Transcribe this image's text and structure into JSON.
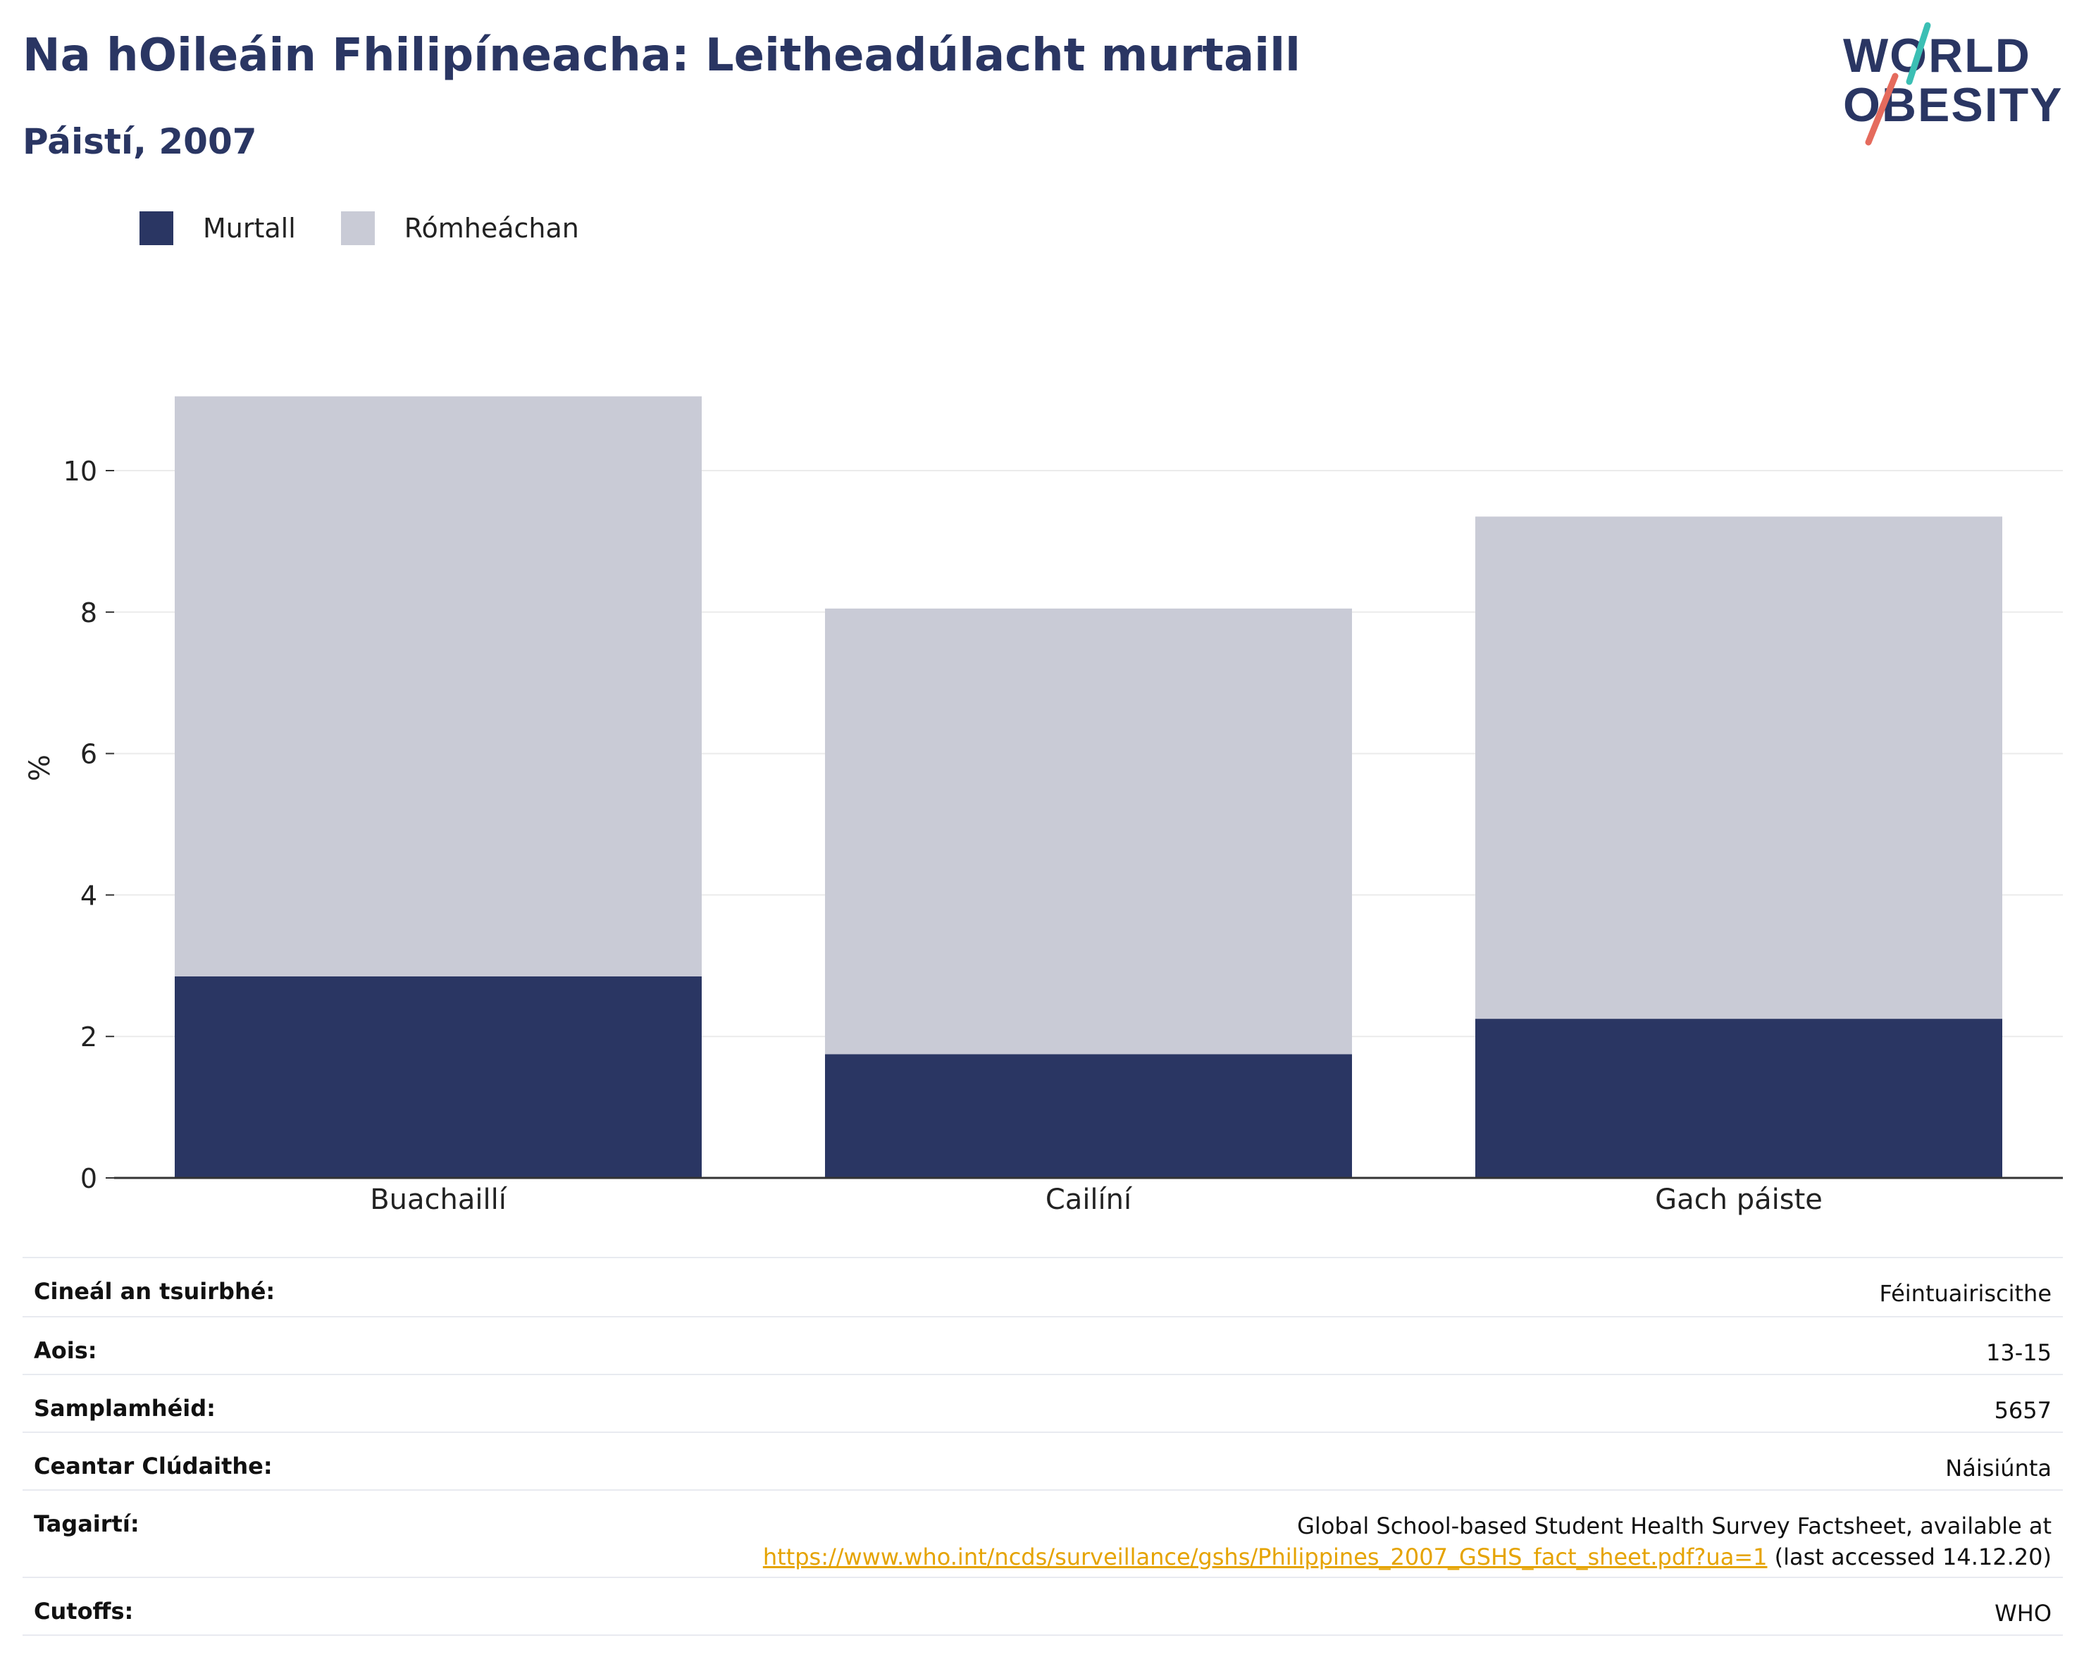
{
  "header": {
    "title": "Na hOileáin Fhilipíneacha: Leitheadúlacht murtaill",
    "subtitle": "Páistí, 2007"
  },
  "logo": {
    "line1": "WORLD",
    "line2": "OBESITY"
  },
  "colors": {
    "obese": "#2a3663",
    "overweight": "#c9cbd6",
    "title": "#2a3663",
    "link": "#e5a300",
    "logo_teal": "#3bbfb4",
    "logo_coral": "#e56b5d"
  },
  "legend": [
    {
      "label": "Murtall",
      "color": "#2a3663"
    },
    {
      "label": "Rómheáchan",
      "color": "#c9cbd6"
    }
  ],
  "chart_data": {
    "type": "bar",
    "stacked": true,
    "categories": [
      "Buachaillí",
      "Cailíní",
      "Gach páiste"
    ],
    "series": [
      {
        "name": "Murtall",
        "values": [
          2.85,
          1.75,
          2.25
        ]
      },
      {
        "name": "Rómheáchan",
        "values": [
          8.2,
          6.3,
          7.1
        ]
      }
    ],
    "ylabel": "%",
    "ylim": [
      0,
      11.5
    ],
    "yticks": [
      0,
      2,
      4,
      6,
      8,
      10
    ],
    "grid": true,
    "legend_position": "top-left"
  },
  "meta": {
    "rows": [
      {
        "key": "Cineál an tsuirbhé:",
        "value": "Féintuairiscithe"
      },
      {
        "key": "Aois:",
        "value": "13-15"
      },
      {
        "key": "Samplamhéid:",
        "value": "5657"
      },
      {
        "key": "Ceantar Clúdaithe:",
        "value": "Náisiúnta"
      },
      {
        "key": "Tagairtí:",
        "value": "Global School-based Student Health Survey Factsheet, available at",
        "link": "https://www.who.int/ncds/surveillance/gshs/Philippines_2007_GSHS_fact_sheet.pdf?ua=1",
        "suffix": " (last accessed 14.12.20)"
      },
      {
        "key": "Cutoffs:",
        "value": "WHO"
      }
    ]
  }
}
